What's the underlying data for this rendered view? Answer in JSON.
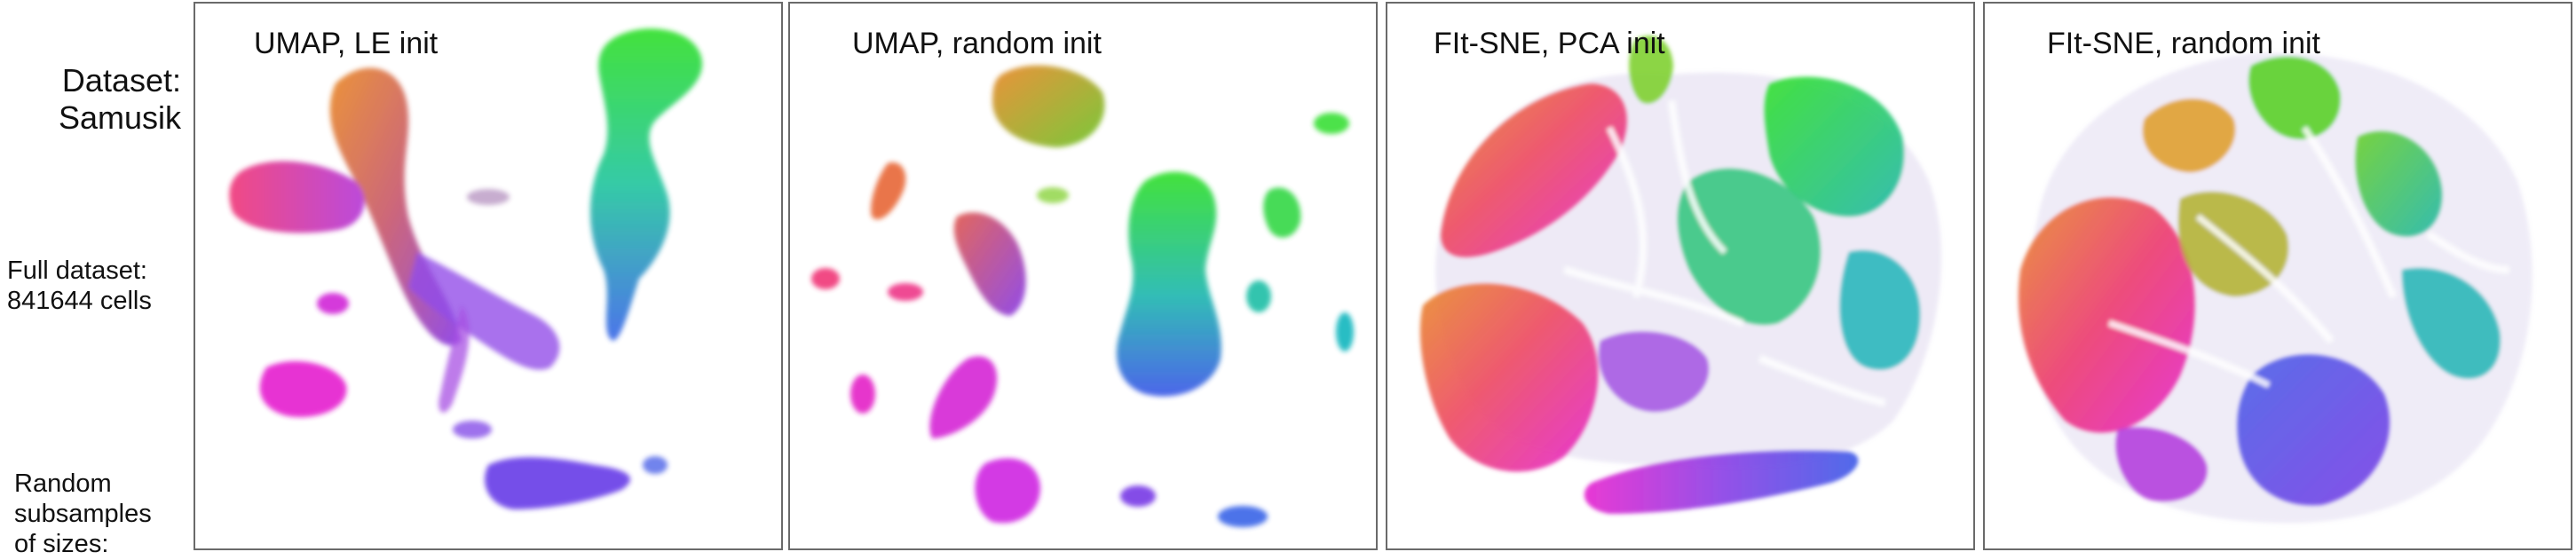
{
  "side_labels": {
    "dataset_line1": "Dataset:",
    "dataset_line2": "Samusik",
    "full_line1": "Full dataset:",
    "full_line2": "841644 cells",
    "random_line1": "Random",
    "random_line2": "subsamples",
    "random_line3": "of sizes:"
  },
  "panels": [
    {
      "title": "UMAP, LE init"
    },
    {
      "title": "UMAP, random init"
    },
    {
      "title": "FIt-SNE, PCA init"
    },
    {
      "title": "FIt-SNE, random init"
    }
  ],
  "colors": {
    "border": "#6a6a6a",
    "orange": "#e98a2a",
    "green": "#32e02c",
    "teal": "#1fb8b0",
    "blue": "#3d5ae8",
    "violet": "#8a3ee6",
    "magenta": "#ee22d8",
    "pink": "#f03a7a"
  }
}
